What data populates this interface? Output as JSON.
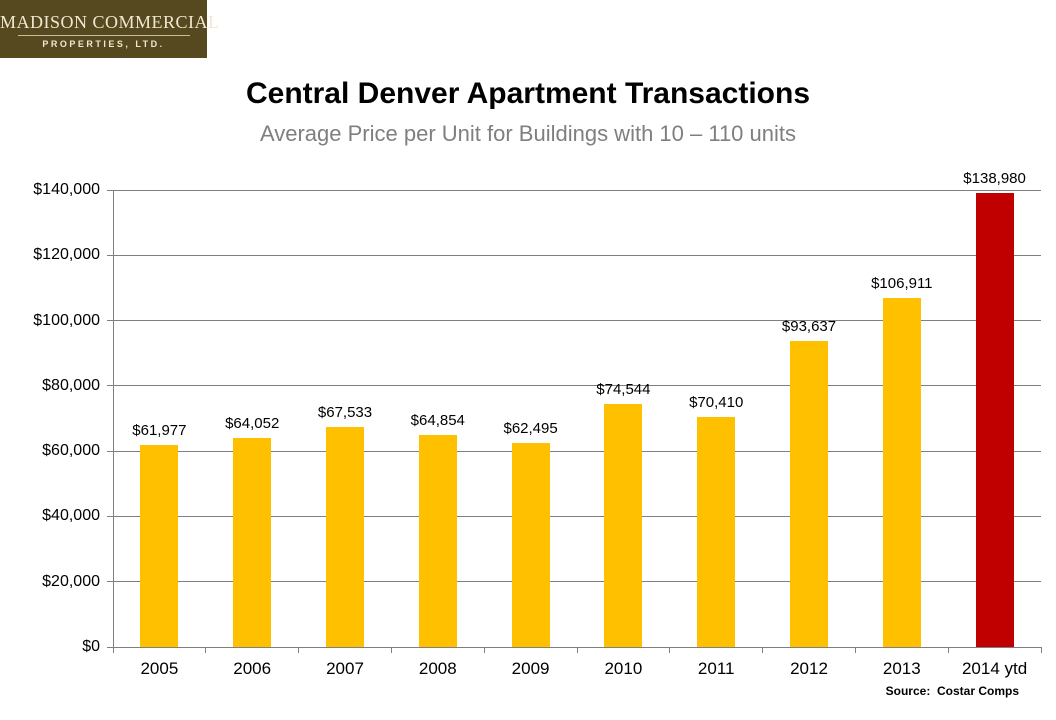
{
  "logo": {
    "line1": "MADISON COMMERCIAL",
    "line2": "PROPERTIES, LTD.",
    "bg_color": "#57491F",
    "text_color": "#EFE8D0"
  },
  "header": {
    "title": "Central Denver Apartment Transactions",
    "subtitle": "Average Price per Unit for Buildings with 10 – 110 units"
  },
  "source": {
    "label": "Source:  Costar Comps"
  },
  "chart_data": {
    "type": "bar",
    "title": "Central Denver Apartment Transactions",
    "subtitle": "Average Price per Unit for Buildings with 10 – 110 units",
    "categories": [
      "2005",
      "2006",
      "2007",
      "2008",
      "2009",
      "2010",
      "2011",
      "2012",
      "2013",
      "2014 ytd"
    ],
    "values": [
      61977,
      64052,
      67533,
      64854,
      62495,
      74544,
      70410,
      93637,
      106911,
      138980
    ],
    "value_labels": [
      "$61,977",
      "$64,052",
      "$67,533",
      "$64,854",
      "$62,495",
      "$74,544",
      "$70,410",
      "$93,637",
      "$106,911",
      "$138,980"
    ],
    "xlabel": "",
    "ylabel": "",
    "ylim": [
      0,
      140000
    ],
    "yticks": [
      0,
      20000,
      40000,
      60000,
      80000,
      100000,
      120000,
      140000
    ],
    "ytick_labels": [
      "$0",
      "$20,000",
      "$40,000",
      "$60,000",
      "$80,000",
      "$100,000",
      "$120,000",
      "$140,000"
    ],
    "bar_color": "#FFC000",
    "highlight_color": "#C00000",
    "highlight_index": 9,
    "grid": true,
    "grid_color": "#7F7F7F",
    "axis_color": "#7F7F7F",
    "legend": false
  }
}
